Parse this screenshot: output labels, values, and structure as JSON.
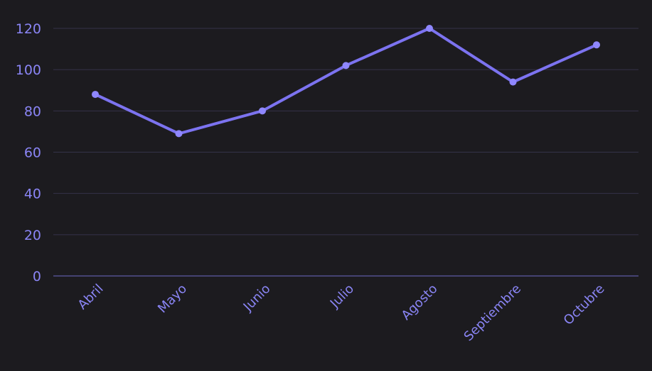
{
  "chart_data": {
    "type": "line",
    "title": "",
    "xlabel": "",
    "ylabel": "",
    "categories": [
      "Abril",
      "Mayo",
      "Junio",
      "Julio",
      "Agosto",
      "Septiembre",
      "Octubre"
    ],
    "series": [
      {
        "values": [
          88,
          69,
          80,
          102,
          120,
          94,
          112
        ]
      }
    ],
    "ylim": [
      0,
      120
    ],
    "yticks": [
      0,
      20,
      40,
      60,
      80,
      100,
      120
    ],
    "grid": true,
    "legend": "none",
    "colors": {
      "background": "#1c1b1f",
      "line": "#7c73f0",
      "marker": "#8f87ff",
      "tick_text": "#8a85f5",
      "grid": "#34324a",
      "axis": "#6e68c4"
    }
  }
}
